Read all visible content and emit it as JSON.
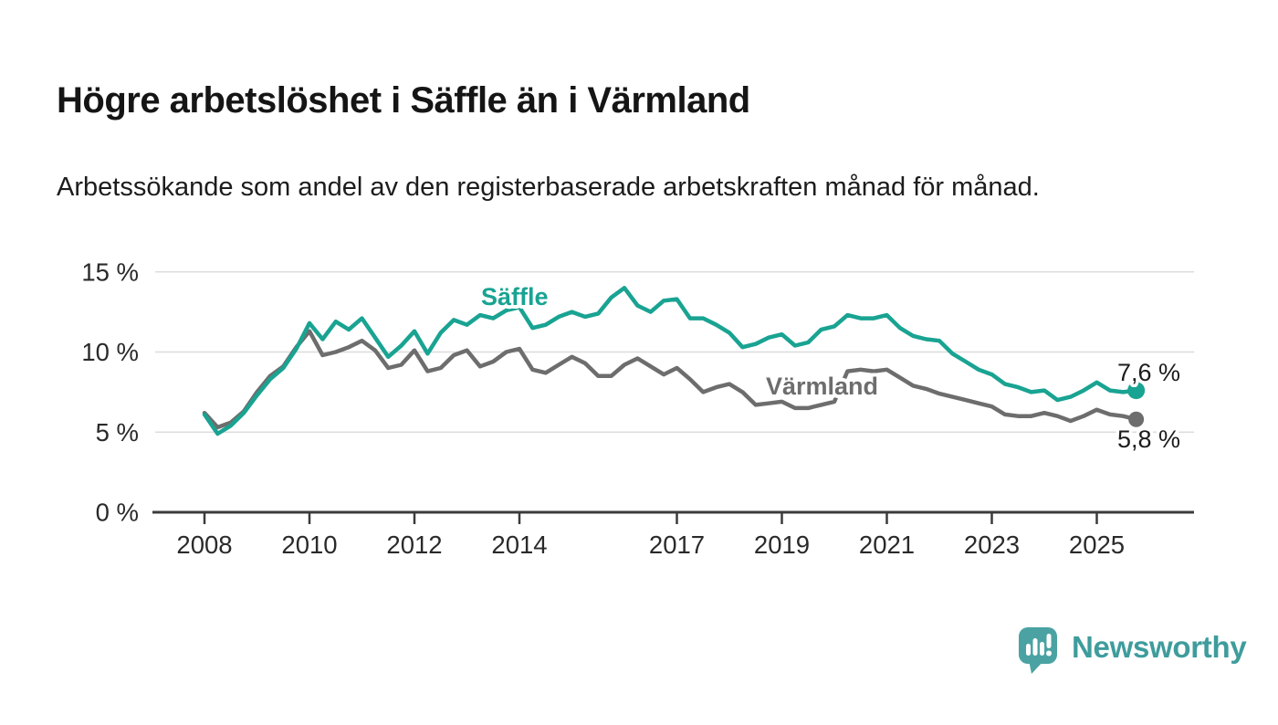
{
  "header": {
    "title": "Högre arbetslöshet i Säffle än i Värmland",
    "subtitle": "Arbetssökande som andel av den registerbaserade arbetskraften månad för månad."
  },
  "chart_data": {
    "type": "line",
    "unit": "%",
    "grid": "horizontal",
    "legend_position": "inline-labels",
    "ylim": [
      0,
      16
    ],
    "yticks": [
      {
        "value": 0,
        "label": "0 %"
      },
      {
        "value": 5,
        "label": "5 %"
      },
      {
        "value": 10,
        "label": "10 %"
      },
      {
        "value": 15,
        "label": "15 %"
      }
    ],
    "xticks": [
      "2008",
      "2010",
      "2012",
      "2014",
      "2017",
      "2019",
      "2021",
      "2023",
      "2025"
    ],
    "x": [
      "2008-01",
      "2008-04",
      "2008-07",
      "2008-10",
      "2009-01",
      "2009-04",
      "2009-07",
      "2009-10",
      "2010-01",
      "2010-04",
      "2010-07",
      "2010-10",
      "2011-01",
      "2011-04",
      "2011-07",
      "2011-10",
      "2012-01",
      "2012-04",
      "2012-07",
      "2012-10",
      "2013-01",
      "2013-04",
      "2013-07",
      "2013-10",
      "2014-01",
      "2014-04",
      "2014-07",
      "2014-10",
      "2015-01",
      "2015-04",
      "2015-07",
      "2015-10",
      "2016-01",
      "2016-04",
      "2016-07",
      "2016-10",
      "2017-01",
      "2017-04",
      "2017-07",
      "2017-10",
      "2018-01",
      "2018-04",
      "2018-07",
      "2018-10",
      "2019-01",
      "2019-04",
      "2019-07",
      "2019-10",
      "2020-01",
      "2020-04",
      "2020-07",
      "2020-10",
      "2021-01",
      "2021-04",
      "2021-07",
      "2021-10",
      "2022-01",
      "2022-04",
      "2022-07",
      "2022-10",
      "2023-01",
      "2023-04",
      "2023-07",
      "2023-10",
      "2024-01",
      "2024-04",
      "2024-07",
      "2024-10",
      "2025-01",
      "2025-04",
      "2025-07",
      "2025-10"
    ],
    "series": [
      {
        "name": "Säffle",
        "color": "#19a392",
        "end_label": "7,6 %",
        "end_value": 7.6,
        "values": [
          6.1,
          4.9,
          5.4,
          6.2,
          7.3,
          8.3,
          9.0,
          10.2,
          11.8,
          10.8,
          11.9,
          11.4,
          12.1,
          10.9,
          9.7,
          10.4,
          11.3,
          9.9,
          11.2,
          12.0,
          11.7,
          12.3,
          12.1,
          12.6,
          12.8,
          11.5,
          11.7,
          12.2,
          12.5,
          12.2,
          12.4,
          13.4,
          14.0,
          12.9,
          12.5,
          13.2,
          13.3,
          12.1,
          12.1,
          11.7,
          11.2,
          10.3,
          10.5,
          10.9,
          11.1,
          10.4,
          10.6,
          11.4,
          11.6,
          12.3,
          12.1,
          12.1,
          12.3,
          11.5,
          11.0,
          10.8,
          10.7,
          9.9,
          9.4,
          8.9,
          8.6,
          8.0,
          7.8,
          7.5,
          7.6,
          7.0,
          7.2,
          7.6,
          8.1,
          7.6,
          7.5,
          7.6
        ]
      },
      {
        "name": "Värmland",
        "color": "#6d6d6d",
        "end_label": "5,8 %",
        "end_value": 5.8,
        "values": [
          6.2,
          5.3,
          5.6,
          6.3,
          7.5,
          8.5,
          9.1,
          10.3,
          11.3,
          9.8,
          10.0,
          10.3,
          10.7,
          10.1,
          9.0,
          9.2,
          10.1,
          8.8,
          9.0,
          9.8,
          10.1,
          9.1,
          9.4,
          10.0,
          10.2,
          8.9,
          8.7,
          9.2,
          9.7,
          9.3,
          8.5,
          8.5,
          9.2,
          9.6,
          9.1,
          8.6,
          9.0,
          8.3,
          7.5,
          7.8,
          8.0,
          7.5,
          6.7,
          6.8,
          6.9,
          6.5,
          6.5,
          6.7,
          6.9,
          8.8,
          8.9,
          8.8,
          8.9,
          8.4,
          7.9,
          7.7,
          7.4,
          7.2,
          7.0,
          6.8,
          6.6,
          6.1,
          6.0,
          6.0,
          6.2,
          6.0,
          5.7,
          6.0,
          6.4,
          6.1,
          6.0,
          5.8
        ]
      }
    ]
  },
  "footer": {
    "brand": "Newsworthy",
    "brand_color": "#3f9c9c",
    "logo_bubble_color": "#4aa3a2"
  }
}
